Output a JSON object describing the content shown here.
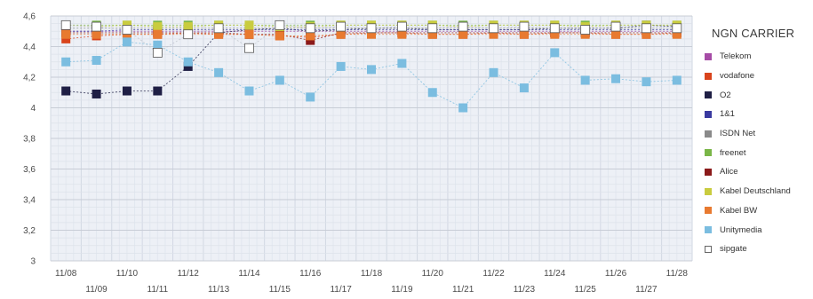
{
  "chart_data": {
    "type": "line",
    "title": "",
    "xlabel": "",
    "ylabel": "",
    "ylim": [
      3,
      4.6
    ],
    "y_ticks": [
      3,
      3.2,
      3.4,
      3.6,
      3.8,
      4,
      4.2,
      4.4,
      4.6
    ],
    "y_tick_labels": [
      "3",
      "3,2",
      "3,4",
      "3,6",
      "3,8",
      "4",
      "4,2",
      "4,4",
      "4,6"
    ],
    "categories": [
      "11/08",
      "11/09",
      "11/10",
      "11/11",
      "11/12",
      "11/13",
      "11/14",
      "11/15",
      "11/16",
      "11/17",
      "11/18",
      "11/19",
      "11/20",
      "11/21",
      "11/22",
      "11/23",
      "11/24",
      "11/25",
      "11/26",
      "11/27",
      "11/28"
    ],
    "grid": true,
    "legend_title": "NGN CARRIER",
    "legend_position": "right",
    "series": [
      {
        "name": "Telekom",
        "color": "#a64ca6",
        "values": [
          4.5,
          4.5,
          4.5,
          4.5,
          4.5,
          4.5,
          4.5,
          4.5,
          4.5,
          4.5,
          4.5,
          4.5,
          4.5,
          4.5,
          4.5,
          4.5,
          4.5,
          4.5,
          4.5,
          4.5,
          4.5
        ]
      },
      {
        "name": "vodafone",
        "color": "#d9441c",
        "values": [
          4.45,
          4.47,
          4.48,
          4.48,
          4.49,
          4.48,
          4.48,
          4.47,
          4.46,
          4.48,
          4.49,
          4.49,
          4.48,
          4.48,
          4.49,
          4.48,
          4.49,
          4.49,
          4.48,
          4.48,
          4.49
        ]
      },
      {
        "name": "O2",
        "color": "#1f1f45",
        "values": [
          4.11,
          4.09,
          4.11,
          4.11,
          4.27,
          4.49,
          4.51,
          4.52,
          4.5,
          4.51,
          4.52,
          4.52,
          4.51,
          4.51,
          4.51,
          4.51,
          4.52,
          4.52,
          4.52,
          4.54,
          4.53
        ]
      },
      {
        "name": "1&1",
        "color": "#3a3aa0",
        "values": [
          4.5,
          4.5,
          4.51,
          4.51,
          4.51,
          4.51,
          4.51,
          4.51,
          4.51,
          4.51,
          4.51,
          4.51,
          4.51,
          4.51,
          4.51,
          4.51,
          4.51,
          4.51,
          4.51,
          4.51,
          4.51
        ]
      },
      {
        "name": "ISDN Net",
        "color": "#8a8a8a",
        "values": [
          4.52,
          4.52,
          4.52,
          4.52,
          4.52,
          4.52,
          4.52,
          4.52,
          4.52,
          4.52,
          4.52,
          4.52,
          4.52,
          4.52,
          4.52,
          4.52,
          4.52,
          4.52,
          4.52,
          4.52,
          4.52
        ]
      },
      {
        "name": "freenet",
        "color": "#7ab648",
        "values": [
          4.54,
          4.54,
          4.54,
          4.54,
          4.54,
          4.54,
          4.54,
          4.54,
          4.54,
          4.54,
          4.54,
          4.54,
          4.54,
          4.54,
          4.54,
          4.54,
          4.54,
          4.54,
          4.54,
          4.54,
          4.54
        ]
      },
      {
        "name": "Alice",
        "color": "#8b1a1a",
        "values": [
          4.49,
          4.49,
          4.49,
          4.49,
          4.49,
          4.49,
          4.48,
          4.48,
          4.44,
          4.49,
          4.49,
          4.49,
          4.49,
          4.49,
          4.49,
          4.49,
          4.49,
          4.49,
          4.49,
          4.49,
          4.49
        ]
      },
      {
        "name": "Kabel Deutschland",
        "color": "#c9cc3f",
        "values": [
          4.54,
          4.53,
          4.54,
          4.53,
          4.53,
          4.54,
          4.54,
          4.53,
          4.53,
          4.54,
          4.54,
          4.54,
          4.54,
          4.53,
          4.54,
          4.54,
          4.54,
          4.53,
          4.54,
          4.54,
          4.54
        ]
      },
      {
        "name": "Kabel BW",
        "color": "#e87a30",
        "values": [
          4.48,
          4.48,
          4.48,
          4.48,
          4.48,
          4.48,
          4.48,
          4.47,
          4.47,
          4.48,
          4.48,
          4.48,
          4.48,
          4.48,
          4.48,
          4.48,
          4.48,
          4.48,
          4.48,
          4.48,
          4.48
        ]
      },
      {
        "name": "Unitymedia",
        "color": "#7bbde0",
        "values": [
          4.3,
          4.31,
          4.43,
          4.41,
          4.3,
          4.23,
          4.11,
          4.18,
          4.07,
          4.27,
          4.25,
          4.29,
          4.1,
          4.0,
          4.23,
          4.13,
          4.36,
          4.18,
          4.19,
          4.17,
          4.18
        ]
      },
      {
        "name": "sipgate",
        "color": "#ffffff",
        "values": [
          4.54,
          4.53,
          4.51,
          4.36,
          4.48,
          4.52,
          4.39,
          4.54,
          4.52,
          4.53,
          4.52,
          4.53,
          4.52,
          4.53,
          4.52,
          4.53,
          4.52,
          4.51,
          4.53,
          4.52,
          4.52
        ]
      }
    ]
  }
}
